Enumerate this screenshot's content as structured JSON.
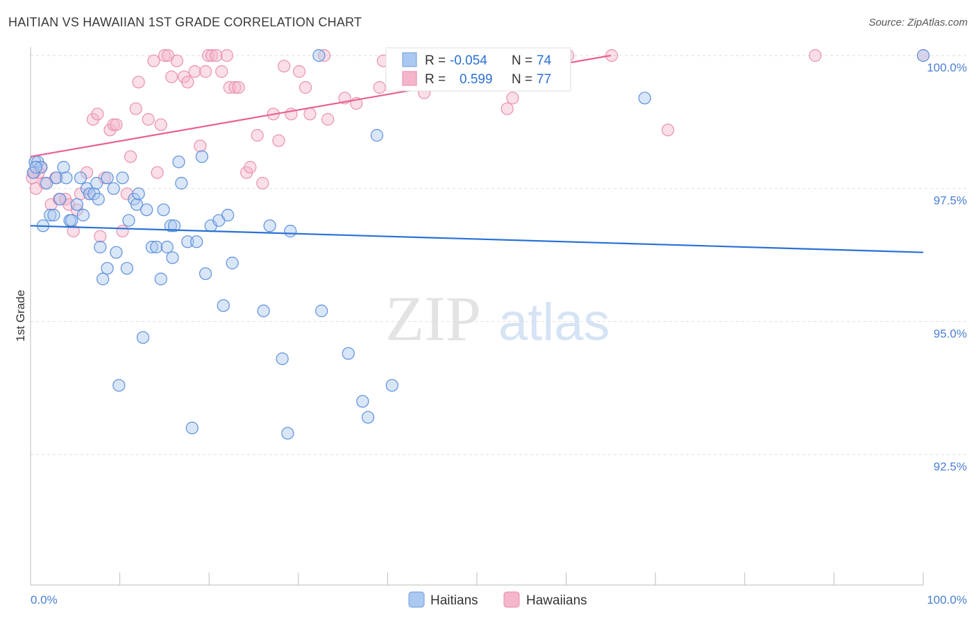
{
  "title": "HAITIAN VS HAWAIIAN 1ST GRADE CORRELATION CHART",
  "source": "Source: ZipAtlas.com",
  "watermark": {
    "zip": "ZIP",
    "atlas": "atlas"
  },
  "colors": {
    "blue": "#2970d6",
    "blue_fill": "#aac8f0",
    "pink": "#e8608f",
    "pink_fill": "#f5b6cb",
    "tick_text": "#4a7fd4",
    "grid": "#dddddd"
  },
  "stats_legend": [
    {
      "r_label": "R =",
      "r_value": "-0.054",
      "n_label": "N =",
      "n_value": "74"
    },
    {
      "r_label": "R =",
      "r_value": "0.599",
      "n_label": "N =",
      "n_value": "77"
    }
  ],
  "chart_data": {
    "type": "scatter",
    "title": "HAITIAN VS HAWAIIAN 1ST GRADE CORRELATION CHART",
    "xlabel": "",
    "ylabel": "1st Grade",
    "xlim": [
      0,
      100
    ],
    "ylim": [
      90.0,
      100.3
    ],
    "x_tick_labels": [
      "0.0%",
      "100.0%"
    ],
    "y_ticks": [
      92.5,
      95.0,
      97.5,
      100.0
    ],
    "y_tick_labels": [
      "92.5%",
      "95.0%",
      "97.5%",
      "100.0%"
    ],
    "grid": "horizontal dashed",
    "legend": "bottom-center",
    "series": [
      {
        "name": "Haitians",
        "color": "#2970d6",
        "trend": {
          "x": [
            0,
            100
          ],
          "y": [
            96.8,
            96.3
          ]
        },
        "points": [
          [
            0.3,
            97.8
          ],
          [
            0.5,
            98.0
          ],
          [
            0.8,
            98.0
          ],
          [
            1.2,
            97.9
          ],
          [
            1.4,
            96.8
          ],
          [
            1.8,
            97.6
          ],
          [
            2.2,
            97.0
          ],
          [
            2.6,
            97.0
          ],
          [
            2.9,
            97.7
          ],
          [
            3.3,
            97.3
          ],
          [
            3.7,
            97.9
          ],
          [
            4.0,
            97.7
          ],
          [
            4.4,
            96.9
          ],
          [
            4.6,
            96.9
          ],
          [
            5.2,
            97.2
          ],
          [
            5.6,
            97.7
          ],
          [
            5.9,
            97.0
          ],
          [
            6.3,
            97.5
          ],
          [
            6.6,
            97.4
          ],
          [
            7.1,
            97.4
          ],
          [
            7.4,
            97.6
          ],
          [
            7.6,
            97.3
          ],
          [
            7.8,
            96.4
          ],
          [
            8.1,
            95.8
          ],
          [
            8.6,
            96.0
          ],
          [
            8.6,
            97.7
          ],
          [
            9.3,
            97.5
          ],
          [
            9.6,
            96.3
          ],
          [
            9.9,
            93.8
          ],
          [
            10.3,
            97.7
          ],
          [
            10.8,
            96.0
          ],
          [
            11.0,
            96.9
          ],
          [
            11.6,
            97.3
          ],
          [
            11.9,
            97.2
          ],
          [
            12.1,
            97.4
          ],
          [
            12.6,
            94.7
          ],
          [
            13.0,
            97.1
          ],
          [
            13.6,
            96.4
          ],
          [
            14.1,
            96.4
          ],
          [
            14.6,
            95.8
          ],
          [
            14.9,
            97.1
          ],
          [
            15.3,
            96.4
          ],
          [
            15.7,
            96.8
          ],
          [
            15.9,
            96.2
          ],
          [
            16.1,
            96.8
          ],
          [
            16.6,
            98.0
          ],
          [
            16.9,
            97.6
          ],
          [
            17.6,
            96.5
          ],
          [
            18.1,
            93.0
          ],
          [
            18.6,
            96.5
          ],
          [
            19.2,
            98.1
          ],
          [
            19.6,
            95.9
          ],
          [
            20.2,
            96.8
          ],
          [
            21.1,
            96.9
          ],
          [
            21.6,
            95.3
          ],
          [
            22.1,
            97.0
          ],
          [
            22.6,
            96.1
          ],
          [
            26.1,
            95.2
          ],
          [
            26.8,
            96.8
          ],
          [
            28.2,
            94.3
          ],
          [
            28.8,
            92.9
          ],
          [
            29.1,
            96.7
          ],
          [
            32.3,
            100.0
          ],
          [
            32.6,
            95.2
          ],
          [
            35.6,
            94.4
          ],
          [
            37.2,
            93.5
          ],
          [
            37.8,
            93.2
          ],
          [
            38.8,
            98.5
          ],
          [
            40.5,
            93.8
          ],
          [
            50.5,
            100.0
          ],
          [
            68.8,
            99.2
          ],
          [
            100.0,
            100.0
          ],
          [
            45.3,
            99.8
          ],
          [
            0.6,
            97.9
          ]
        ]
      },
      {
        "name": "Hawaiians",
        "color": "#e8608f",
        "trend": {
          "x": [
            0,
            65
          ],
          "y": [
            98.1,
            100.0
          ]
        },
        "points": [
          [
            0.2,
            97.7
          ],
          [
            0.6,
            97.5
          ],
          [
            0.9,
            97.8
          ],
          [
            1.1,
            97.9
          ],
          [
            1.6,
            97.6
          ],
          [
            2.3,
            97.2
          ],
          [
            2.8,
            97.7
          ],
          [
            3.2,
            97.3
          ],
          [
            3.9,
            97.3
          ],
          [
            4.3,
            97.2
          ],
          [
            4.8,
            96.7
          ],
          [
            5.2,
            97.1
          ],
          [
            5.6,
            97.4
          ],
          [
            6.3,
            97.8
          ],
          [
            6.6,
            97.4
          ],
          [
            7.0,
            98.8
          ],
          [
            7.5,
            98.9
          ],
          [
            7.8,
            96.6
          ],
          [
            8.3,
            97.7
          ],
          [
            8.9,
            98.6
          ],
          [
            9.3,
            98.7
          ],
          [
            9.6,
            98.7
          ],
          [
            10.3,
            96.7
          ],
          [
            10.8,
            97.4
          ],
          [
            11.2,
            98.1
          ],
          [
            11.8,
            99.0
          ],
          [
            12.1,
            99.5
          ],
          [
            13.2,
            98.8
          ],
          [
            13.8,
            99.9
          ],
          [
            14.2,
            97.8
          ],
          [
            14.6,
            98.7
          ],
          [
            15.0,
            100.0
          ],
          [
            15.4,
            100.0
          ],
          [
            15.8,
            99.6
          ],
          [
            16.4,
            99.9
          ],
          [
            17.2,
            99.6
          ],
          [
            17.6,
            99.5
          ],
          [
            18.4,
            99.7
          ],
          [
            19.0,
            98.3
          ],
          [
            19.6,
            99.7
          ],
          [
            19.9,
            100.0
          ],
          [
            20.3,
            100.0
          ],
          [
            20.8,
            100.0
          ],
          [
            21.4,
            99.7
          ],
          [
            22.0,
            100.0
          ],
          [
            22.3,
            99.4
          ],
          [
            22.9,
            99.4
          ],
          [
            23.3,
            99.4
          ],
          [
            24.2,
            97.8
          ],
          [
            24.6,
            97.9
          ],
          [
            25.4,
            98.5
          ],
          [
            26.0,
            97.6
          ],
          [
            27.2,
            98.9
          ],
          [
            27.8,
            98.4
          ],
          [
            28.4,
            99.8
          ],
          [
            29.2,
            98.9
          ],
          [
            30.1,
            99.7
          ],
          [
            30.8,
            99.4
          ],
          [
            31.3,
            98.9
          ],
          [
            32.9,
            100.0
          ],
          [
            33.3,
            98.8
          ],
          [
            35.2,
            99.2
          ],
          [
            36.5,
            99.1
          ],
          [
            39.1,
            99.4
          ],
          [
            39.5,
            99.9
          ],
          [
            42.1,
            100.0
          ],
          [
            44.1,
            99.3
          ],
          [
            45.0,
            99.9
          ],
          [
            53.4,
            99.0
          ],
          [
            54.0,
            99.2
          ],
          [
            56.4,
            99.9
          ],
          [
            60.2,
            100.0
          ],
          [
            65.1,
            100.0
          ],
          [
            71.4,
            98.6
          ],
          [
            87.9,
            100.0
          ],
          [
            100.0,
            100.0
          ],
          [
            0.4,
            97.8
          ]
        ]
      }
    ]
  }
}
